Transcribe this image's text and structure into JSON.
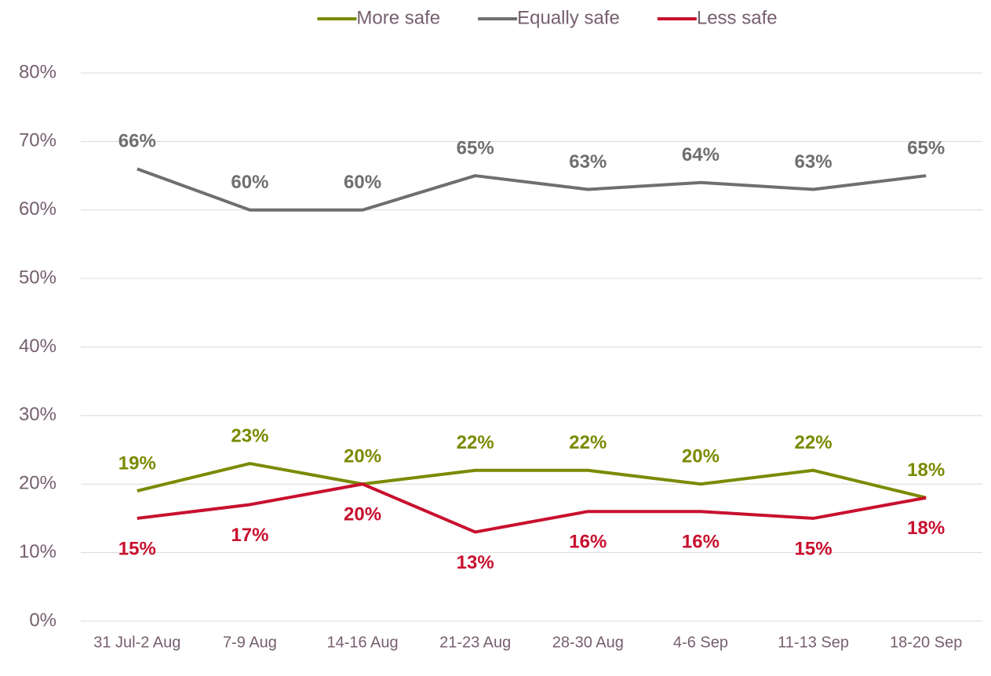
{
  "chart_data": {
    "type": "line",
    "categories": [
      "31 Jul-2 Aug",
      "7-9 Aug",
      "14-16 Aug",
      "21-23 Aug",
      "28-30 Aug",
      "4-6 Sep",
      "11-13 Sep",
      "18-20 Sep"
    ],
    "series": [
      {
        "name": "More safe",
        "color": "#7a8a00",
        "values": [
          19,
          23,
          20,
          22,
          22,
          20,
          22,
          18
        ],
        "value_labels": [
          "19%",
          "23%",
          "20%",
          "22%",
          "22%",
          "20%",
          "22%",
          "18%"
        ]
      },
      {
        "name": "Equally safe",
        "color": "#6f6f6f",
        "values": [
          66,
          60,
          60,
          65,
          63,
          64,
          63,
          65
        ],
        "value_labels": [
          "66%",
          "60%",
          "60%",
          "65%",
          "63%",
          "64%",
          "63%",
          "65%"
        ]
      },
      {
        "name": "Less safe",
        "color": "#c8102e",
        "values": [
          15,
          17,
          20,
          13,
          16,
          16,
          15,
          18
        ],
        "value_labels": [
          "15%",
          "17%",
          "20%",
          "13%",
          "16%",
          "16%",
          "15%",
          "18%"
        ]
      }
    ],
    "ylim": [
      0,
      80
    ],
    "yticks": [
      {
        "value": 0,
        "label": "0%"
      },
      {
        "value": 10,
        "label": "10%"
      },
      {
        "value": 20,
        "label": "20%"
      },
      {
        "value": 30,
        "label": "30%"
      },
      {
        "value": 40,
        "label": "40%"
      },
      {
        "value": 50,
        "label": "50%"
      },
      {
        "value": 60,
        "label": "60%"
      },
      {
        "value": 70,
        "label": "70%"
      },
      {
        "value": 80,
        "label": "80%"
      }
    ],
    "grid": true,
    "legend": "top"
  }
}
